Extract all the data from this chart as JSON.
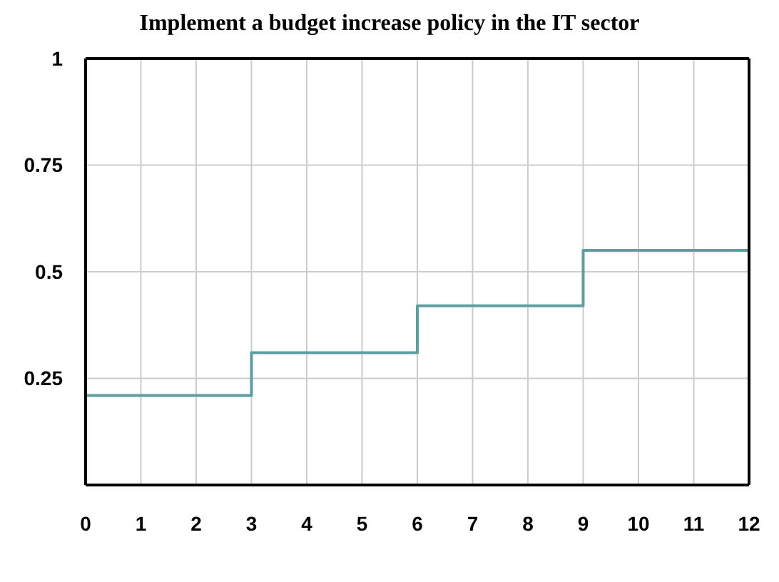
{
  "chart_data": {
    "type": "step",
    "title": "Implement a budget increase policy in the IT sector",
    "x": [
      0,
      3,
      6,
      9,
      12
    ],
    "series": [
      {
        "color": "#5f9ea0",
        "values": [
          0.21,
          0.31,
          0.42,
          0.55,
          0.55
        ]
      }
    ],
    "xlim": [
      0,
      12
    ],
    "xticks": [
      0,
      1,
      2,
      3,
      4,
      5,
      6,
      7,
      8,
      9,
      10,
      11,
      12
    ],
    "ylim": [
      0,
      1
    ],
    "yticks": [
      0.25,
      0.5,
      0.75,
      1
    ],
    "grid": true,
    "marker": "none",
    "line_style": "solid"
  }
}
